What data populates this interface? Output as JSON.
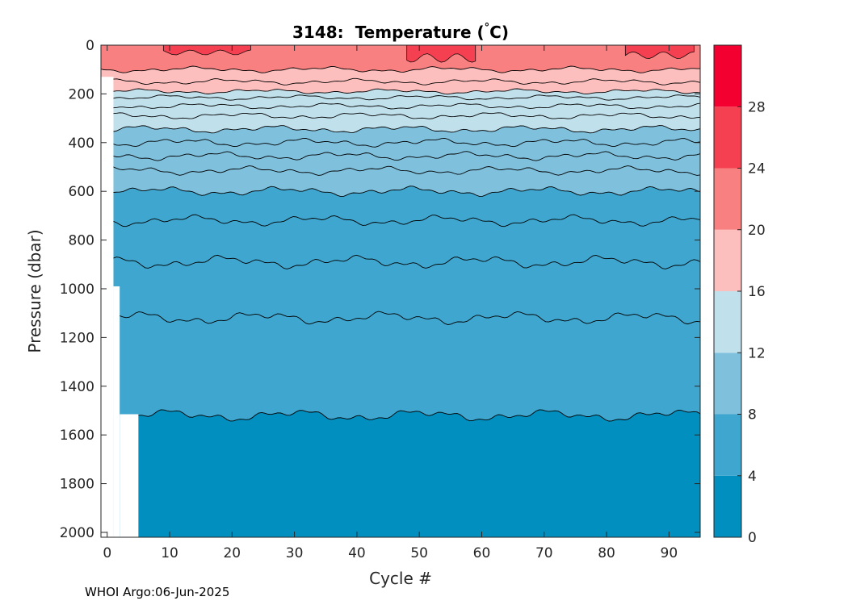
{
  "chart_data": {
    "type": "heatmap",
    "subtype": "filled-contour",
    "title_number": "3148:",
    "title_variable": "Temperature (",
    "title_degree": "°",
    "title_unit": "C)",
    "xlabel": "Cycle #",
    "ylabel": "Pressure (dbar)",
    "x_ticks": [
      0,
      10,
      20,
      30,
      40,
      50,
      60,
      70,
      80,
      90
    ],
    "y_ticks": [
      0,
      200,
      400,
      600,
      800,
      1000,
      1200,
      1400,
      1600,
      1800,
      2000
    ],
    "xlim": [
      -1,
      95
    ],
    "ylim": [
      0,
      2020
    ],
    "y_reversed": true,
    "colorbar": {
      "ticks": [
        0,
        4,
        8,
        12,
        16,
        20,
        24,
        28
      ],
      "range": [
        0,
        32
      ],
      "levels": [
        {
          "from": 0,
          "to": 4,
          "color": "#008fbf"
        },
        {
          "from": 4,
          "to": 8,
          "color": "#3fa6cf"
        },
        {
          "from": 8,
          "to": 12,
          "color": "#7fc0dd"
        },
        {
          "from": 12,
          "to": 16,
          "color": "#c0e0ec"
        },
        {
          "from": 16,
          "to": 20,
          "color": "#fcbfbe"
        },
        {
          "from": 20,
          "to": 24,
          "color": "#f88080"
        },
        {
          "from": 24,
          "to": 28,
          "color": "#f44050"
        },
        {
          "from": 28,
          "to": 32,
          "color": "#f40030"
        }
      ]
    },
    "contour_levels": [
      {
        "temp": 4,
        "mean_pressure": 1520,
        "amplitude": 28
      },
      {
        "temp": 5,
        "mean_pressure": 1120,
        "amplitude": 30
      },
      {
        "temp": 6,
        "mean_pressure": 890,
        "amplitude": 30
      },
      {
        "temp": 7,
        "mean_pressure": 720,
        "amplitude": 25
      },
      {
        "temp": 8,
        "mean_pressure": 600,
        "amplitude": 22
      },
      {
        "temp": 9,
        "mean_pressure": 515,
        "amplitude": 20
      },
      {
        "temp": 10,
        "mean_pressure": 455,
        "amplitude": 20
      },
      {
        "temp": 11,
        "mean_pressure": 400,
        "amplitude": 20
      },
      {
        "temp": 12,
        "mean_pressure": 345,
        "amplitude": 18
      },
      {
        "temp": 13,
        "mean_pressure": 290,
        "amplitude": 16
      },
      {
        "temp": 14,
        "mean_pressure": 250,
        "amplitude": 14
      },
      {
        "temp": 15,
        "mean_pressure": 215,
        "amplitude": 12
      },
      {
        "temp": 16,
        "mean_pressure": 190,
        "amplitude": 12
      },
      {
        "temp": 18,
        "mean_pressure": 150,
        "amplitude": 14
      },
      {
        "temp": 20,
        "mean_pressure": 100,
        "amplitude": 14
      }
    ],
    "warm_patches_24C": [
      {
        "x_from": 9,
        "x_to": 23,
        "depth": 40
      },
      {
        "x_from": 48,
        "x_to": 59,
        "depth": 70
      },
      {
        "x_from": 83,
        "x_to": 94,
        "depth": 55
      }
    ],
    "data_gaps": [
      {
        "x_from": -1,
        "x_to": 1,
        "p_from": 130,
        "p_to": 2020
      },
      {
        "x_from": 1,
        "x_to": 2,
        "p_from": 990,
        "p_to": 2020
      },
      {
        "x_from": 2,
        "x_to": 5,
        "p_from": 1515,
        "p_to": 2020
      }
    ]
  },
  "footer": "WHOI Argo:06-Jun-2025"
}
